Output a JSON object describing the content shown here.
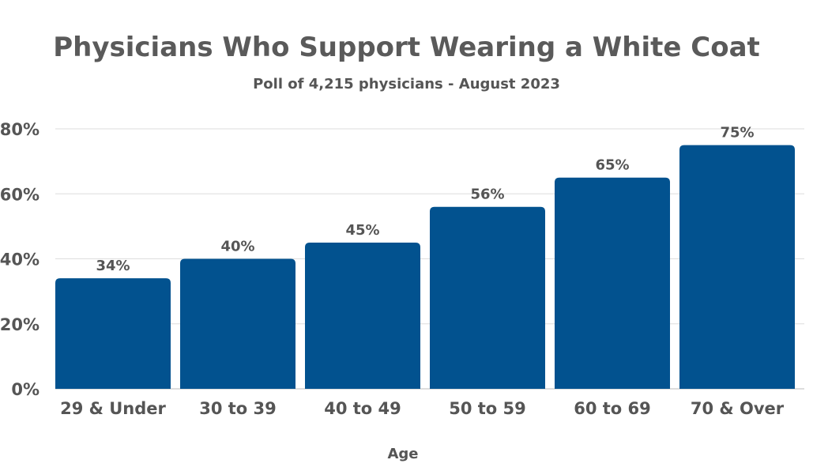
{
  "chart_data": {
    "type": "bar",
    "title": "Physicians Who Support Wearing a White Coat",
    "subtitle": "Poll of 4,215 physicians - August 2023",
    "xlabel": "Age",
    "ylabel": "",
    "categories": [
      "29 & Under",
      "30 to 39",
      "40 to 49",
      "50 to 59",
      "60 to 69",
      "70 & Over"
    ],
    "values": [
      34,
      40,
      45,
      56,
      65,
      75
    ],
    "value_labels": [
      "34%",
      "40%",
      "45%",
      "56%",
      "65%",
      "75%"
    ],
    "ylim": [
      0,
      80
    ],
    "yticks": [
      0,
      20,
      40,
      60,
      80
    ],
    "ytick_labels": [
      "0%",
      "20%",
      "40%",
      "60%",
      "80%"
    ],
    "grid": true,
    "legend": "none",
    "colors": {
      "bar": "#02528f",
      "grid": "#dddddd",
      "text": "#555555"
    }
  }
}
